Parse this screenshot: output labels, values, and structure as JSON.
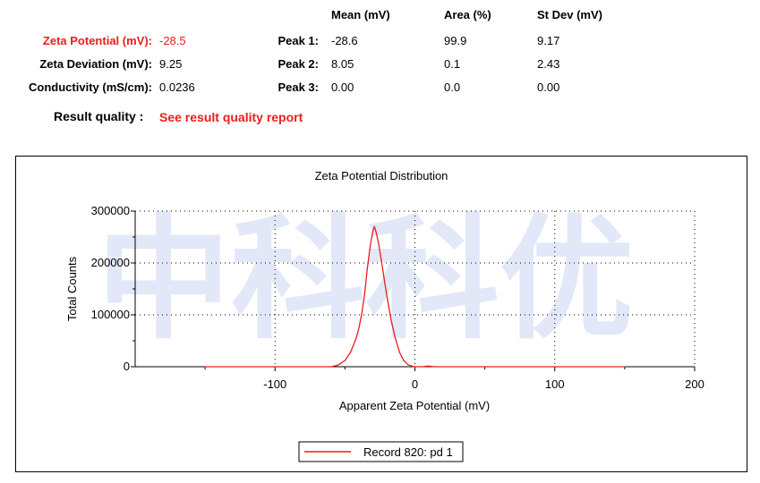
{
  "summary": {
    "zeta_potential_label": "Zeta Potential (mV):",
    "zeta_potential_value": "-28.5",
    "zeta_deviation_label": "Zeta Deviation (mV):",
    "zeta_deviation_value": "9.25",
    "conductivity_label": "Conductivity (mS/cm):",
    "conductivity_value": "0.0236",
    "result_quality_label": "Result quality :",
    "result_quality_link": "See result quality report"
  },
  "peaks": {
    "headers": [
      "Mean (mV)",
      "Area (%)",
      "St Dev (mV)"
    ],
    "rows": [
      {
        "label": "Peak 1:",
        "mean": "-28.6",
        "area": "99.9",
        "stdev": "9.17"
      },
      {
        "label": "Peak 2:",
        "mean": "8.05",
        "area": "0.1",
        "stdev": "2.43"
      },
      {
        "label": "Peak 3:",
        "mean": "0.00",
        "area": "0.0",
        "stdev": "0.00"
      }
    ]
  },
  "watermark": "中科科优",
  "colors": {
    "accent_red": "#ee1c1c",
    "series": "#ee1c1c"
  },
  "chart_data": {
    "type": "line",
    "title": "Zeta Potential Distribution",
    "xlabel": "Apparent Zeta Potential (mV)",
    "ylabel": "Total Counts",
    "xlim": [
      -200,
      200
    ],
    "ylim": [
      0,
      300000
    ],
    "xticks": [
      "-100",
      "0",
      "100",
      "200"
    ],
    "yticks": [
      "0",
      "100000",
      "200000",
      "300000"
    ],
    "grid": true,
    "legend_position": "bottom-center",
    "series": [
      {
        "name": "Record 820: pd 1",
        "x": [
          -150,
          -100,
          -60,
          -55,
          -50,
          -46,
          -42,
          -40,
          -38,
          -36,
          -34,
          -32,
          -30,
          -29,
          -28,
          -26,
          -24,
          -22,
          -20,
          -17,
          -14,
          -11,
          -8,
          -5,
          -2,
          0,
          5,
          8,
          10,
          14,
          50,
          100,
          150
        ],
        "y": [
          0,
          0,
          0,
          3000,
          12000,
          28000,
          55000,
          75000,
          102000,
          140000,
          190000,
          232000,
          262000,
          270000,
          262000,
          238000,
          205000,
          170000,
          135000,
          90000,
          55000,
          28000,
          12000,
          4000,
          1000,
          0,
          0,
          800,
          1200,
          0,
          0,
          0,
          0
        ]
      }
    ]
  }
}
